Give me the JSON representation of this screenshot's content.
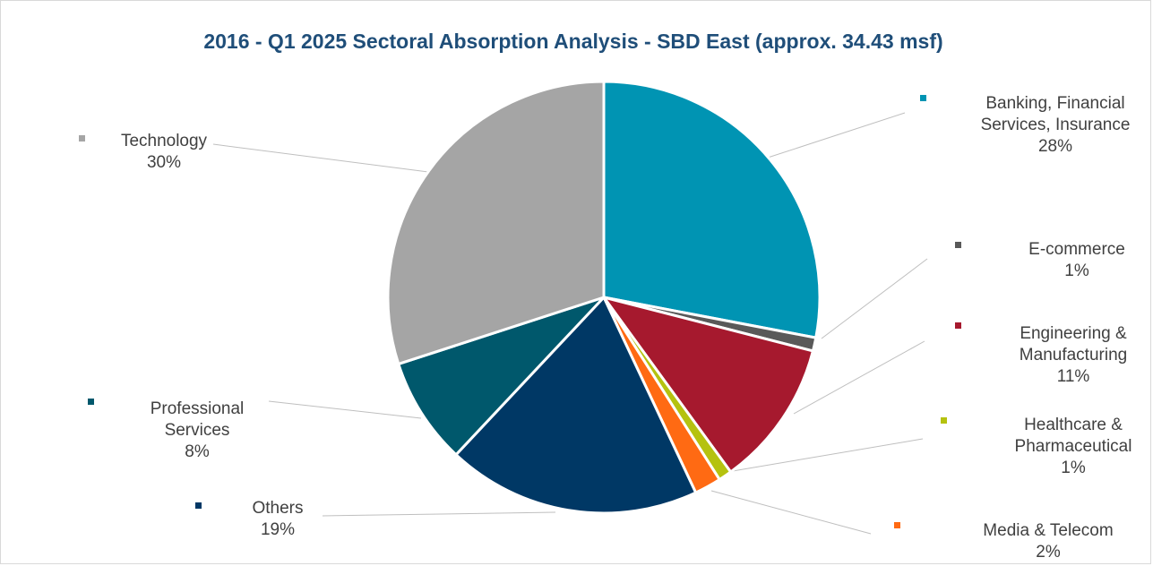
{
  "chart_data": {
    "type": "pie",
    "title": "2016 - Q1 2025  Sectoral Absorption Analysis - SBD East (approx. 34.43 msf)",
    "start_angle_deg": 0,
    "direction": "clockwise",
    "legend": "labels-with-leader-lines",
    "slices": [
      {
        "name": "Banking, Financial Services, Insurance",
        "label_lines": [
          "Banking, Financial",
          "Services, Insurance"
        ],
        "value": 28,
        "value_label": "28%",
        "color": "#0094b3"
      },
      {
        "name": "E-commerce",
        "label_lines": [
          "E-commerce"
        ],
        "value": 1,
        "value_label": "1%",
        "color": "#595959"
      },
      {
        "name": "Engineering & Manufacturing",
        "label_lines": [
          "Engineering &",
          "Manufacturing"
        ],
        "value": 11,
        "value_label": "11%",
        "color": "#a6192e"
      },
      {
        "name": "Healthcare & Pharmaceutical",
        "label_lines": [
          "Healthcare &",
          "Pharmaceutical"
        ],
        "value": 1,
        "value_label": "1%",
        "color": "#b5c20f"
      },
      {
        "name": "Media & Telecom",
        "label_lines": [
          "Media & Telecom"
        ],
        "value": 2,
        "value_label": "2%",
        "color": "#ff6a13"
      },
      {
        "name": "Others",
        "label_lines": [
          "Others"
        ],
        "value": 19,
        "value_label": "19%",
        "color": "#003865"
      },
      {
        "name": "Professional Services",
        "label_lines": [
          "Professional",
          "Services"
        ],
        "value": 8,
        "value_label": "8%",
        "color": "#00586c"
      },
      {
        "name": "Technology",
        "label_lines": [
          "Technology"
        ],
        "value": 30,
        "value_label": "30%",
        "color": "#a5a5a5"
      }
    ]
  }
}
